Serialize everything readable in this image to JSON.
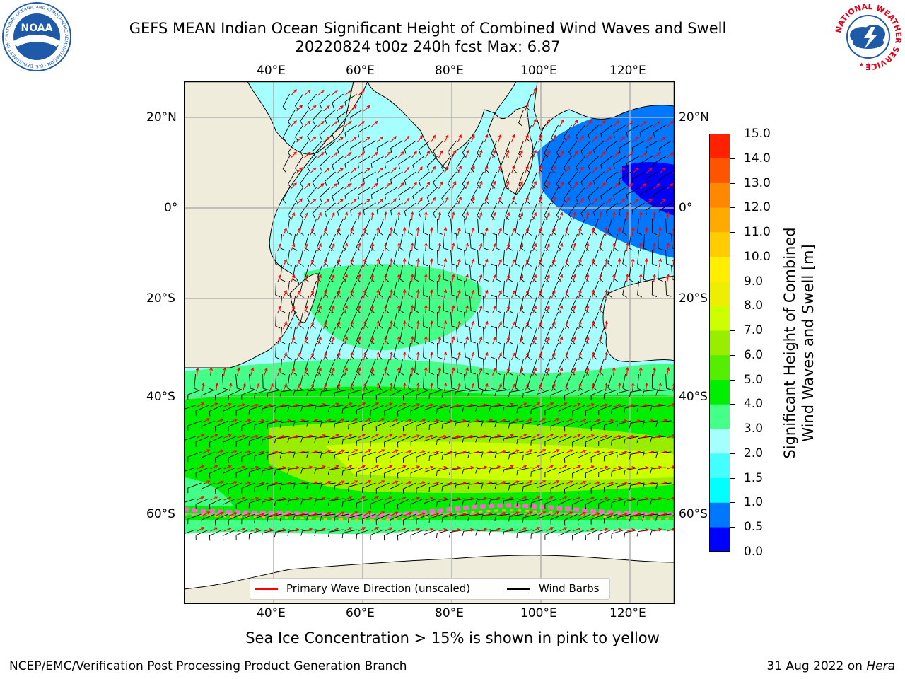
{
  "header": {
    "title_line1": "GEFS MEAN Indian Ocean Significant Height of Combined Wind Waves and Swell",
    "title_line2": "20220824 t00z 240h fcst   Max: 6.87"
  },
  "logos": {
    "left": {
      "text": "NOAA",
      "ring_text": "NATIONAL OCEANIC AND ATMOSPHERIC ADMINISTRATION · U.S. DEPARTMENT OF COMMERCE",
      "colors": [
        "#1e5aa8",
        "#ffffff"
      ]
    },
    "right": {
      "ring_text": "NATIONAL WEATHER SERVICE",
      "colors": [
        "#e3001b",
        "#1e5aa8",
        "#ffffff"
      ]
    }
  },
  "map": {
    "lon_labels": [
      "40°E",
      "60°E",
      "80°E",
      "100°E",
      "120°E"
    ],
    "lat_labels": [
      "20°N",
      "0°",
      "20°S",
      "40°S",
      "60°S"
    ],
    "lon_values": [
      40,
      60,
      80,
      100,
      120
    ],
    "lat_values": [
      20,
      0,
      -20,
      -40,
      -60
    ],
    "extent": {
      "lon_min": 20,
      "lon_max": 130,
      "lat_min": -75,
      "lat_max": 28
    },
    "land_color": "#efecdc",
    "ice_color": "#ffffff",
    "sea_ice_colors": [
      "#ff66cc",
      "#ffaa44",
      "#ffee55"
    ],
    "grid_color": "#b0b0b0"
  },
  "legend": {
    "wave_label": "Primary Wave Direction (unscaled)",
    "wind_label": "Wind Barbs",
    "wave_color": "#ff0000",
    "wind_color": "#000000"
  },
  "colorbar": {
    "title_line1": "Significant Height of Combined",
    "title_line2": "Wind Waves and Swell [m]",
    "ticks": [
      "15.0",
      "14.0",
      "13.0",
      "12.0",
      "11.0",
      "10.0",
      "9.0",
      "8.0",
      "7.0",
      "6.0",
      "5.0",
      "4.0",
      "3.0",
      "2.0",
      "1.5",
      "1.0",
      "0.5",
      "0.0"
    ],
    "colors": [
      "#0000ff",
      "#0077ff",
      "#00ffff",
      "#44ffff",
      "#a6ffff",
      "#44ff88",
      "#00ee00",
      "#55ee00",
      "#99ee00",
      "#ccff00",
      "#eeee00",
      "#ffee00",
      "#ffcc00",
      "#ffaa00",
      "#ff8800",
      "#ff5500",
      "#ff2200"
    ]
  },
  "caption": "Sea Ice Concentration > 15% is shown in pink to yellow",
  "footer": {
    "left": "NCEP/EMC/Verification Post Processing Product Generation Branch",
    "date": "31 Aug 2022 on ",
    "host": "Hera"
  }
}
